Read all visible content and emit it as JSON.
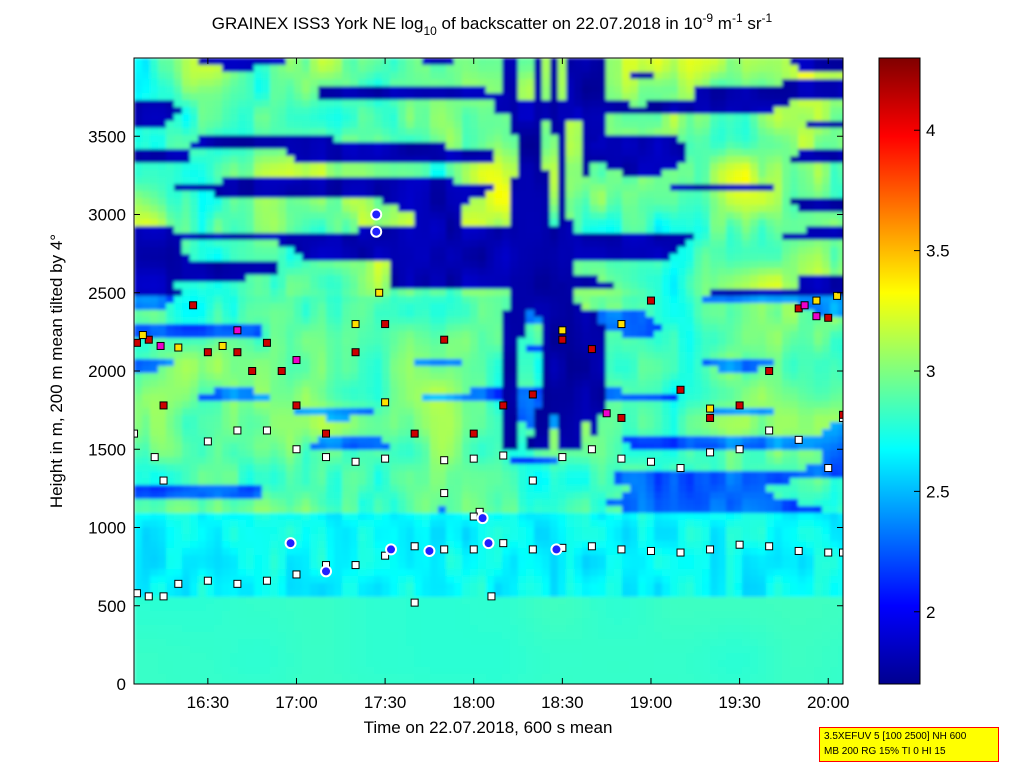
{
  "chart_data": {
    "type": "heatmap",
    "title": {
      "prefix": "GRAINEX ISS3 York NE log",
      "sub1": "10",
      "middle": " of backscatter on 22.07.2018 in 10",
      "sup1": "-9",
      "unit1": " m",
      "sup2": "-1",
      "unit2": " sr",
      "sup3": "-1"
    },
    "xlabel": "Time on 22.07.2018, 600 s mean",
    "ylabel": "Height in m, 200 m mean tilted by 4°",
    "x_range": [
      "16:05",
      "20:05"
    ],
    "xticks": [
      "16:30",
      "17:00",
      "17:30",
      "18:00",
      "18:30",
      "19:00",
      "19:30",
      "20:00"
    ],
    "ylim": [
      0,
      4000
    ],
    "yticks": [
      0,
      500,
      1000,
      1500,
      2000,
      2500,
      3000,
      3500
    ],
    "colorbar": {
      "range": [
        1.7,
        4.3
      ],
      "ticks": [
        "2",
        "2.5",
        "3",
        "3.5",
        "4"
      ],
      "colormap": "jet"
    },
    "layers": [
      {
        "name": "white squares",
        "color": "#ffffff",
        "points": [
          [
            "16:06",
            580
          ],
          [
            "16:10",
            560
          ],
          [
            "16:15",
            560
          ],
          [
            "16:20",
            640
          ],
          [
            "16:30",
            660
          ],
          [
            "16:40",
            640
          ],
          [
            "16:50",
            660
          ],
          [
            "17:00",
            700
          ],
          [
            "17:10",
            760
          ],
          [
            "17:20",
            760
          ],
          [
            "17:30",
            820
          ],
          [
            "17:40",
            880
          ],
          [
            "17:50",
            860
          ],
          [
            "18:00",
            860
          ],
          [
            "18:10",
            900
          ],
          [
            "18:20",
            860
          ],
          [
            "18:30",
            870
          ],
          [
            "18:40",
            880
          ],
          [
            "18:50",
            860
          ],
          [
            "19:00",
            850
          ],
          [
            "19:10",
            840
          ],
          [
            "19:20",
            860
          ],
          [
            "19:30",
            890
          ],
          [
            "19:40",
            880
          ],
          [
            "19:50",
            850
          ],
          [
            "20:00",
            840
          ],
          [
            "20:05",
            840
          ],
          [
            "16:05",
            1600
          ],
          [
            "16:12",
            1450
          ],
          [
            "16:15",
            1300
          ],
          [
            "16:30",
            1550
          ],
          [
            "16:40",
            1620
          ],
          [
            "16:50",
            1620
          ],
          [
            "17:00",
            1500
          ],
          [
            "17:10",
            1450
          ],
          [
            "17:20",
            1420
          ],
          [
            "17:30",
            1440
          ],
          [
            "17:50",
            1430
          ],
          [
            "18:00",
            1440
          ],
          [
            "18:10",
            1460
          ],
          [
            "18:20",
            1300
          ],
          [
            "18:30",
            1450
          ],
          [
            "18:40",
            1500
          ],
          [
            "18:50",
            1440
          ],
          [
            "19:00",
            1420
          ],
          [
            "19:10",
            1380
          ],
          [
            "19:20",
            1480
          ],
          [
            "19:30",
            1500
          ],
          [
            "19:40",
            1620
          ],
          [
            "19:50",
            1560
          ],
          [
            "20:00",
            1380
          ],
          [
            "20:05",
            1700
          ],
          [
            "17:50",
            1220
          ],
          [
            "18:02",
            1100
          ],
          [
            "18:00",
            1070
          ],
          [
            "17:40",
            520
          ],
          [
            "18:06",
            560
          ]
        ]
      },
      {
        "name": "red squares",
        "color": "#cc0000",
        "points": [
          [
            "16:06",
            2180
          ],
          [
            "16:10",
            2200
          ],
          [
            "16:15",
            1780
          ],
          [
            "16:25",
            2420
          ],
          [
            "16:30",
            2120
          ],
          [
            "16:40",
            2120
          ],
          [
            "16:45",
            2000
          ],
          [
            "16:50",
            2180
          ],
          [
            "16:55",
            2000
          ],
          [
            "17:00",
            1780
          ],
          [
            "17:10",
            1600
          ],
          [
            "17:20",
            2120
          ],
          [
            "17:30",
            2300
          ],
          [
            "17:40",
            1600
          ],
          [
            "17:50",
            2200
          ],
          [
            "18:00",
            1600
          ],
          [
            "18:10",
            1780
          ],
          [
            "18:20",
            1850
          ],
          [
            "18:30",
            2200
          ],
          [
            "18:40",
            2140
          ],
          [
            "18:50",
            1700
          ],
          [
            "19:00",
            2450
          ],
          [
            "19:10",
            1880
          ],
          [
            "19:20",
            1700
          ],
          [
            "19:30",
            1780
          ],
          [
            "19:40",
            2000
          ],
          [
            "19:50",
            2400
          ],
          [
            "20:00",
            2340
          ],
          [
            "20:05",
            1720
          ]
        ]
      },
      {
        "name": "yellow squares",
        "color": "#ffe000",
        "points": [
          [
            "16:08",
            2230
          ],
          [
            "16:20",
            2150
          ],
          [
            "16:35",
            2160
          ],
          [
            "17:20",
            2300
          ],
          [
            "17:28",
            2500
          ],
          [
            "17:30",
            1800
          ],
          [
            "18:30",
            2260
          ],
          [
            "18:50",
            2300
          ],
          [
            "19:20",
            1760
          ],
          [
            "19:56",
            2450
          ],
          [
            "20:03",
            2480
          ]
        ]
      },
      {
        "name": "magenta squares",
        "color": "#ee00cc",
        "points": [
          [
            "16:14",
            2160
          ],
          [
            "16:40",
            2260
          ],
          [
            "17:00",
            2070
          ],
          [
            "18:45",
            1730
          ],
          [
            "19:52",
            2420
          ],
          [
            "19:56",
            2350
          ]
        ]
      },
      {
        "name": "blue circles",
        "color": "#2020ff",
        "points": [
          [
            "16:58",
            900
          ],
          [
            "17:10",
            720
          ],
          [
            "17:27",
            3000
          ],
          [
            "17:27",
            2890
          ],
          [
            "17:32",
            860
          ],
          [
            "17:45",
            850
          ],
          [
            "18:03",
            1060
          ],
          [
            "18:05",
            900
          ],
          [
            "18:28",
            860
          ]
        ]
      }
    ]
  },
  "info_box": {
    "line1": "3.5XEFUV 5 [100 2500] NH 600",
    "line2": "MB 200 RG 15% TI 0 HI 15"
  }
}
